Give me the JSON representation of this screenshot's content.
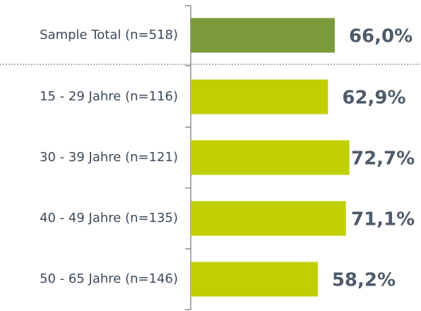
{
  "chart_data": {
    "type": "bar",
    "orientation": "horizontal",
    "categories": [
      "Sample Total (n=518)",
      "15 - 29 Jahre (n=116)",
      "30 - 39 Jahre (n=121)",
      "40 - 49 Jahre (n=135)",
      "50 - 65 Jahre (n=146)"
    ],
    "values": [
      66.0,
      62.9,
      72.7,
      71.1,
      58.2
    ],
    "value_labels": [
      "66,0%",
      "62,9%",
      "72,7%",
      "71,1%",
      "58,2%"
    ],
    "colors": [
      "#7a9a3c",
      "#c0cf00",
      "#c0cf00",
      "#c0cf00",
      "#c0cf00"
    ]
  }
}
